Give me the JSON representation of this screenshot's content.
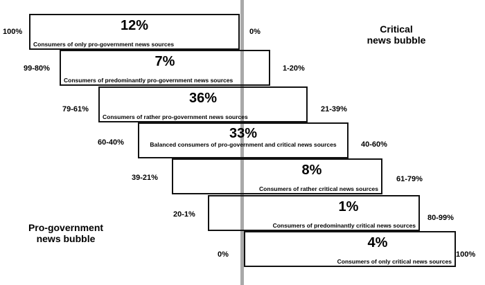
{
  "bubbles": {
    "critical_line1": "Critical",
    "critical_line2": "news bubble",
    "pro_line1": "Pro-government",
    "pro_line2": "news bubble"
  },
  "tiers": [
    {
      "percent": "12%",
      "label": "Consumers of only pro-government news sources",
      "left_range": "100%",
      "right_range": "0%"
    },
    {
      "percent": "7%",
      "label": "Consumers of predominantly pro-government news sources",
      "left_range": "99-80%",
      "right_range": "1-20%"
    },
    {
      "percent": "36%",
      "label": "Consumers of rather pro-government news sources",
      "left_range": "79-61%",
      "right_range": "21-39%"
    },
    {
      "percent": "33%",
      "label": "Balanced consumers of pro-government and critical news sources",
      "left_range": "60-40%",
      "right_range": "40-60%"
    },
    {
      "percent": "8%",
      "label": "Consumers of rather critical news sources",
      "left_range": "39-21%",
      "right_range": "61-79%"
    },
    {
      "percent": "1%",
      "label": "Consumers of predominantly critical news sources",
      "left_range": "20-1%",
      "right_range": "80-99%"
    },
    {
      "percent": "4%",
      "label": "Consumers of only critical news sources",
      "left_range": "0%",
      "right_range": "100%"
    }
  ],
  "colors": {
    "box_border": "#111111",
    "center_axis": "#a9a9a9"
  }
}
